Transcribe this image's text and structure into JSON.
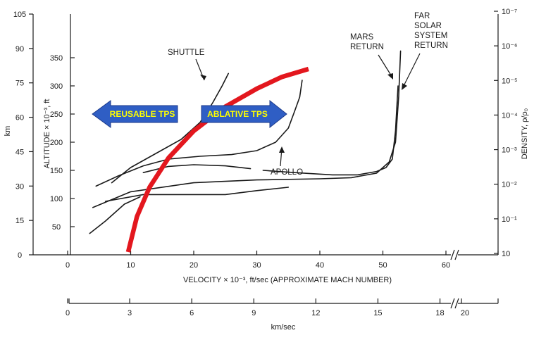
{
  "chart_data": {
    "type": "line",
    "title": "",
    "xlabel": "VELOCITY × 10⁻³, ft/sec (APPROXIMATE MACH NUMBER)",
    "x_ticks": [
      "0",
      "10",
      "20",
      "30",
      "40",
      "50",
      "60"
    ],
    "xlim": [
      0,
      66
    ],
    "x_axis_break_at": 62,
    "km_axis": {
      "label": "km/sec",
      "ticks": [
        "0",
        "3",
        "6",
        "9",
        "12",
        "15",
        "18",
        "20"
      ]
    },
    "y_left_ft": {
      "label": "ALTITUDE × 10⁻³, ft",
      "ticks": [
        "50",
        "100",
        "150",
        "200",
        "250",
        "300",
        "350"
      ],
      "ylim": [
        0,
        350
      ]
    },
    "y_left_km": {
      "label": "km",
      "ticks": [
        "0",
        "15",
        "30",
        "45",
        "60",
        "75",
        "90",
        "105"
      ]
    },
    "y_right_density": {
      "label": "DENSITY, ρ/ρ₀",
      "ticks": [
        "10⁻⁷",
        "10⁻⁶",
        "10⁻⁵",
        "10⁻⁴",
        "10⁻³",
        "10⁻²",
        "10⁻¹",
        "10"
      ]
    },
    "series": [
      {
        "name": "SHUTTLE",
        "color": "#1a1a1a",
        "x": [
          7,
          10,
          14,
          18,
          21,
          23,
          24.5,
          25.5
        ],
        "y": [
          128,
          155,
          180,
          205,
          235,
          270,
          300,
          322
        ]
      },
      {
        "name": "",
        "color": "#1a1a1a",
        "x": [
          3.5,
          6,
          9,
          11.5
        ],
        "y": [
          38,
          60,
          90,
          103
        ]
      },
      {
        "name": "",
        "color": "#1a1a1a",
        "x": [
          4.5,
          8,
          12,
          16,
          21,
          26,
          30,
          33,
          35,
          36,
          36.8,
          37.2
        ],
        "y": [
          122,
          140,
          158,
          170,
          175,
          178,
          185,
          200,
          225,
          255,
          280,
          310
        ]
      },
      {
        "name": "",
        "color": "#1a1a1a",
        "x": [
          6,
          12,
          18,
          25,
          30,
          35
        ],
        "y": [
          95,
          107,
          107,
          107,
          114,
          120
        ]
      },
      {
        "name": "",
        "color": "#1a1a1a",
        "x": [
          12,
          16,
          20,
          25,
          29
        ],
        "y": [
          146,
          157,
          160,
          158,
          153
        ]
      },
      {
        "name": "",
        "color": "#1a1a1a",
        "x": [
          4,
          10,
          20,
          30,
          40,
          45,
          49,
          51,
          52,
          52.5,
          52.8
        ],
        "y": [
          84,
          112,
          128,
          133,
          135,
          137,
          145,
          165,
          200,
          280,
          362
        ]
      },
      {
        "name": "",
        "color": "#1a1a1a",
        "x": [
          31,
          36,
          42,
          46,
          49,
          50.5,
          51.5,
          52,
          52.4
        ],
        "y": [
          150,
          146,
          142,
          142,
          148,
          155,
          170,
          220,
          300
        ]
      },
      {
        "name": "",
        "color": "#e3171e",
        "x": [
          9.6,
          11,
          13,
          16,
          20,
          25,
          30,
          34,
          38.2
        ],
        "y": [
          5,
          68,
          120,
          172,
          220,
          263,
          295,
          316,
          330
        ]
      }
    ],
    "annotations": {
      "shuttle": "SHUTTLE",
      "apollo": "APOLLO",
      "mars_line1": "MARS",
      "mars_line2": "RETURN",
      "far_line1": "FAR",
      "far_line2": "SOLAR",
      "far_line3": "SYSTEM",
      "far_line4": "RETURN",
      "reusable": "REUSABLE TPS",
      "ablative": "ABLATIVE TPS"
    },
    "colors": {
      "curve": "#e3171e",
      "arrow_fill": "#2f5ec4",
      "arrow_text": "#ffff00"
    },
    "grid": false
  }
}
